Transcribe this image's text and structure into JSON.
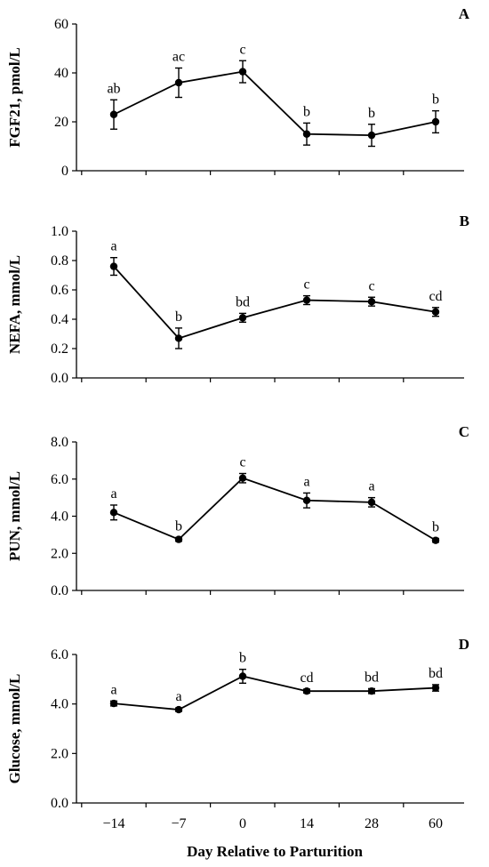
{
  "x_axis_title": "Day Relative to Parturition",
  "chart_data": [
    {
      "type": "line",
      "panel": "A",
      "ylabel": "FGF21, pmol/L",
      "categories": [
        "−14",
        "−7",
        "0",
        "14",
        "28",
        "60"
      ],
      "ylim": [
        0,
        60
      ],
      "yticks": [
        0,
        20,
        40,
        60
      ],
      "ytick_labels": [
        "0",
        "20",
        "40",
        "60"
      ],
      "series": [
        {
          "values": [
            23,
            36,
            40.5,
            15,
            14.5,
            20
          ],
          "err": [
            6,
            6,
            4.5,
            4.5,
            4.5,
            4.5
          ],
          "labels": [
            "ab",
            "ac",
            "c",
            "b",
            "b",
            "b"
          ]
        }
      ]
    },
    {
      "type": "line",
      "panel": "B",
      "ylabel": "NEFA, mmol/L",
      "categories": [
        "−14",
        "−7",
        "0",
        "14",
        "28",
        "60"
      ],
      "ylim": [
        0,
        1.0
      ],
      "yticks": [
        0,
        0.2,
        0.4,
        0.6,
        0.8,
        1.0
      ],
      "ytick_labels": [
        "0.0",
        "0.2",
        "0.4",
        "0.6",
        "0.8",
        "1.0"
      ],
      "series": [
        {
          "values": [
            0.76,
            0.27,
            0.41,
            0.53,
            0.52,
            0.45
          ],
          "err": [
            0.06,
            0.07,
            0.03,
            0.03,
            0.03,
            0.03
          ],
          "labels": [
            "a",
            "b",
            "bd",
            "c",
            "c",
            "cd"
          ]
        }
      ]
    },
    {
      "type": "line",
      "panel": "C",
      "ylabel": "PUN, mmol/L",
      "categories": [
        "−14",
        "−7",
        "0",
        "14",
        "28",
        "60"
      ],
      "ylim": [
        0,
        8.0
      ],
      "yticks": [
        0,
        2,
        4,
        6,
        8
      ],
      "ytick_labels": [
        "0.0",
        "2.0",
        "4.0",
        "6.0",
        "8.0"
      ],
      "series": [
        {
          "values": [
            4.2,
            2.75,
            6.05,
            4.85,
            4.75,
            2.7
          ],
          "err": [
            0.4,
            0.1,
            0.25,
            0.4,
            0.25,
            0.1
          ],
          "labels": [
            "a",
            "b",
            "c",
            "a",
            "a",
            "b"
          ]
        }
      ]
    },
    {
      "type": "line",
      "panel": "D",
      "ylabel": "Glucose, mmol/L",
      "categories": [
        "−14",
        "−7",
        "0",
        "14",
        "28",
        "60"
      ],
      "ylim": [
        0,
        6.0
      ],
      "yticks": [
        0,
        2,
        4,
        6
      ],
      "ytick_labels": [
        "0.0",
        "2.0",
        "4.0",
        "6.0"
      ],
      "series": [
        {
          "values": [
            4.02,
            3.77,
            5.12,
            4.52,
            4.52,
            4.65
          ],
          "err": [
            0.1,
            0.07,
            0.28,
            0.08,
            0.1,
            0.13
          ],
          "labels": [
            "a",
            "a",
            "b",
            "cd",
            "bd",
            "bd"
          ]
        }
      ]
    }
  ]
}
